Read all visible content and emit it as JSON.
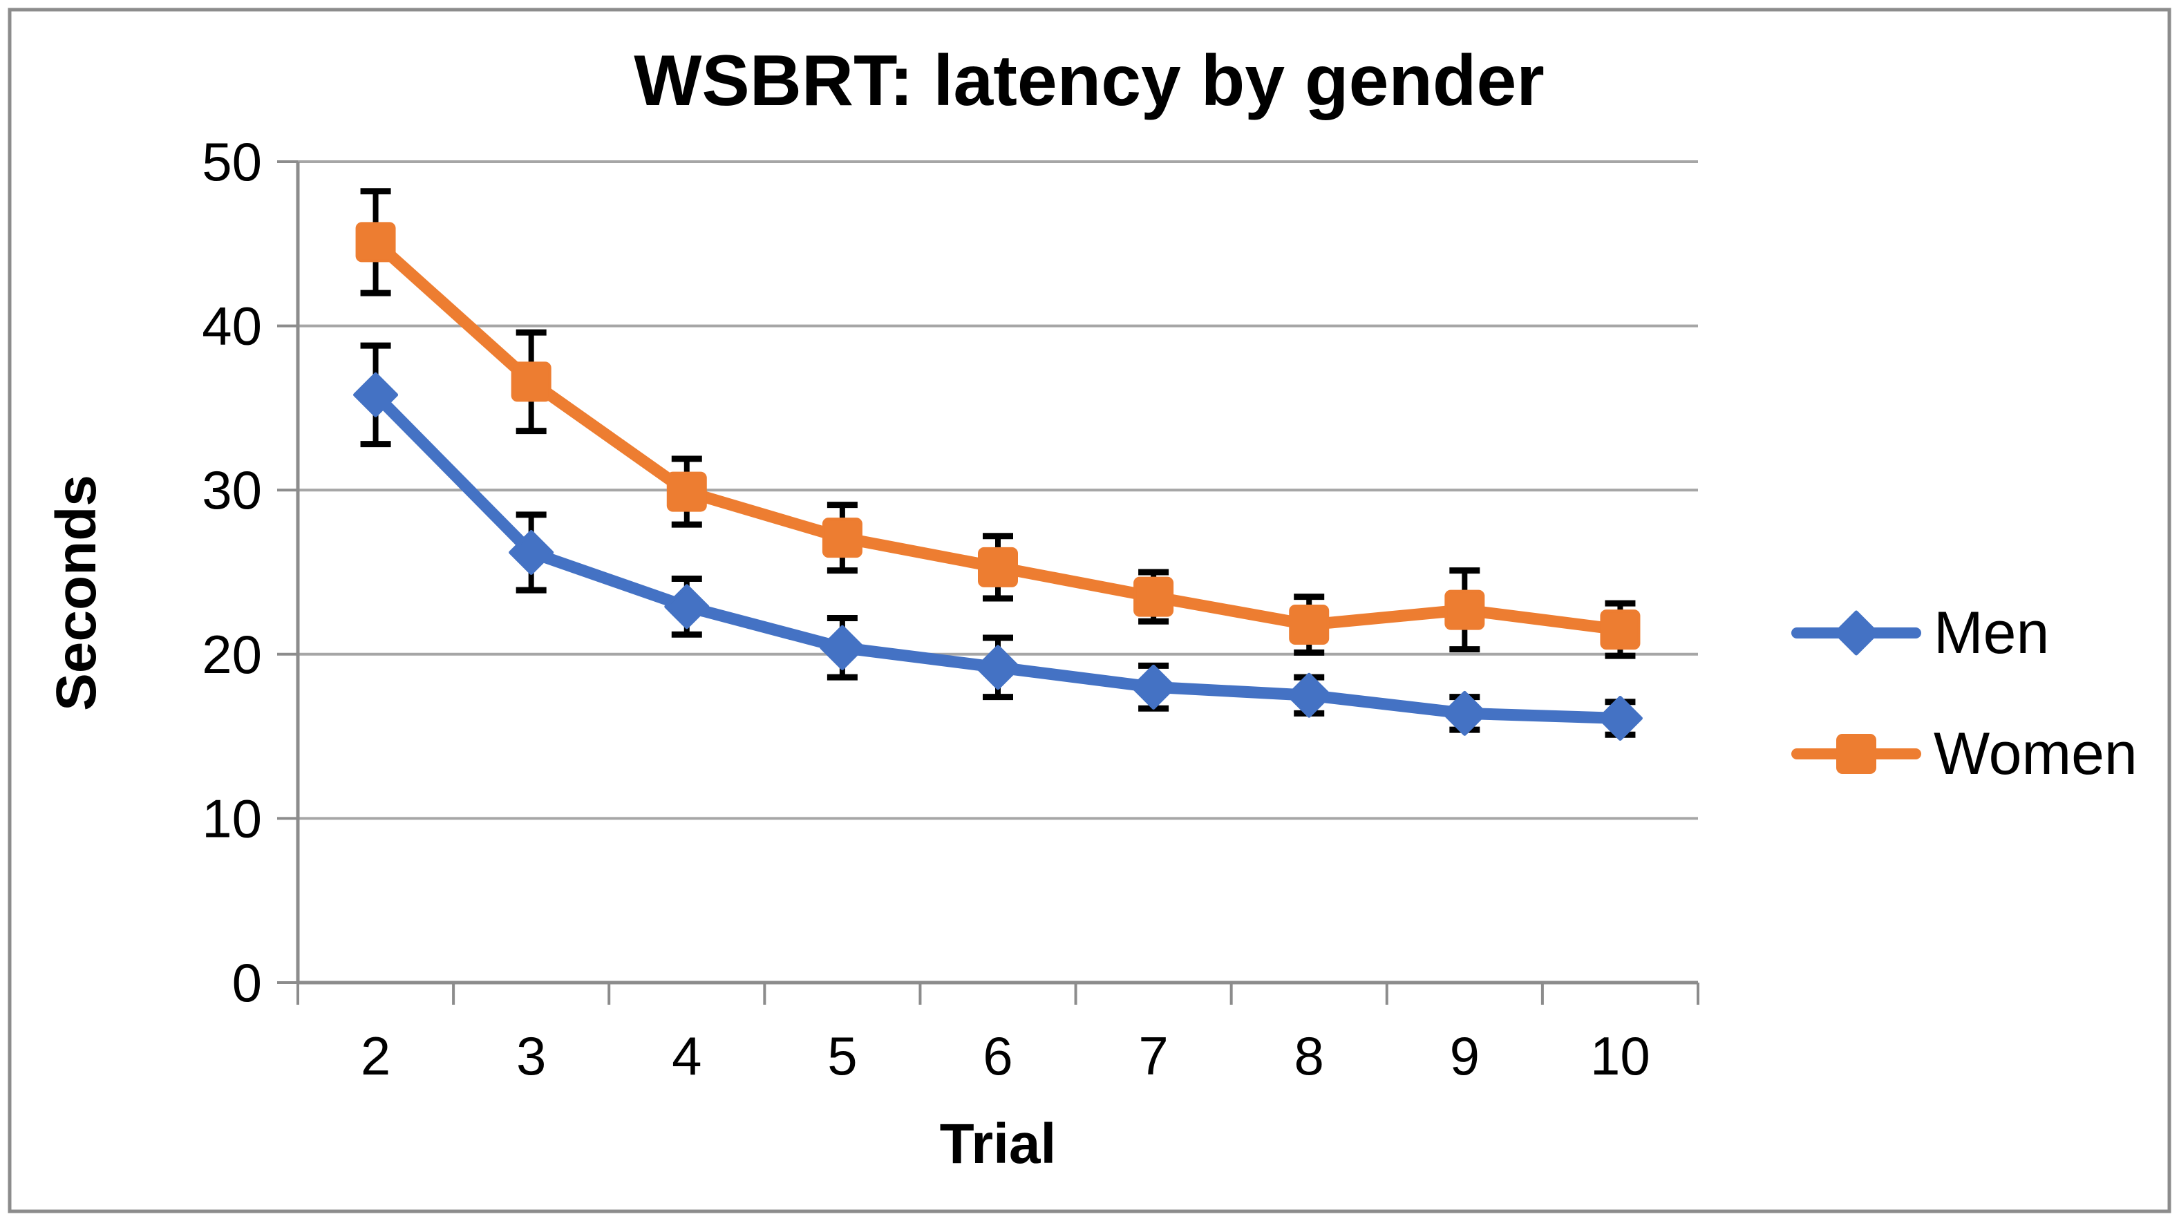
{
  "chart_data": {
    "type": "line",
    "title": "WSBRT: latency by gender",
    "xlabel": "Trial",
    "ylabel": "Seconds",
    "categories": [
      "2",
      "3",
      "4",
      "5",
      "6",
      "7",
      "8",
      "9",
      "10"
    ],
    "yticks": [
      0,
      10,
      20,
      30,
      40,
      50
    ],
    "ylim": [
      0,
      50
    ],
    "grid": true,
    "legend_position": "right",
    "error_bars": true,
    "series": [
      {
        "name": "Men",
        "marker": "diamond",
        "color": "#4472C4",
        "values": [
          35.8,
          26.2,
          22.9,
          20.4,
          19.2,
          18.0,
          17.5,
          16.4,
          16.1
        ],
        "error": [
          3.0,
          2.3,
          1.7,
          1.8,
          1.8,
          1.3,
          1.1,
          1.0,
          1.0
        ]
      },
      {
        "name": "Women",
        "marker": "square",
        "color": "#ED7D31",
        "values": [
          45.1,
          36.6,
          29.9,
          27.1,
          25.3,
          23.5,
          21.8,
          22.7,
          21.5
        ],
        "error": [
          3.1,
          3.0,
          2.0,
          2.0,
          1.9,
          1.5,
          1.7,
          2.4,
          1.6
        ]
      }
    ]
  },
  "styles": {
    "grid_color": "#A6A6A6",
    "axis_color": "#8C8C8C",
    "border_color": "#8C8C8C",
    "error_bar_color": "#000000",
    "background": "#FFFFFF",
    "text_color": "#000000"
  }
}
